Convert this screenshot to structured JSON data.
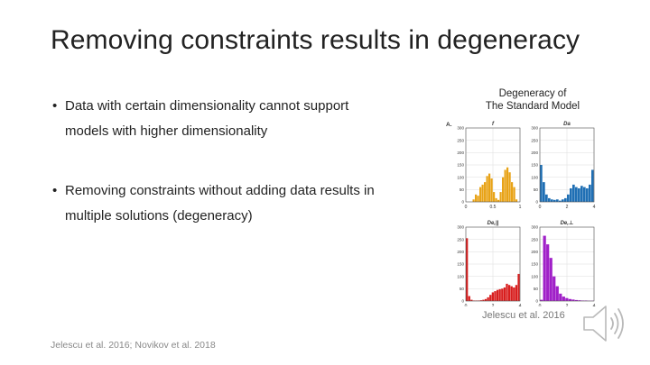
{
  "slide": {
    "title": "Removing constraints results in degeneracy",
    "bullets": [
      "Data with certain dimensionality cannot support models with higher dimensionality",
      "Removing constraints without adding data results in multiple solutions (degeneracy)"
    ],
    "bullet_glyph": "•",
    "figure_title_line1": "Degeneracy of",
    "figure_title_line2": "The Standard Model",
    "figure_caption": "Jelescu et al. 2016",
    "footer": "Jelescu et al. 2016; Novikov et al. 2018",
    "speaker_icon": "speaker-icon"
  },
  "chart_data": [
    {
      "type": "bar",
      "panel_label": "A.",
      "title": "f",
      "color": "#E8A317",
      "x_ticks": [
        "0",
        "0.5",
        "1"
      ],
      "y_ticks": [
        "0",
        "50",
        "100",
        "150",
        "200",
        "250",
        "300"
      ],
      "xlim": [
        0,
        1
      ],
      "ylim": [
        0,
        300
      ],
      "grid": true,
      "values": [
        0,
        0,
        0,
        10,
        30,
        25,
        60,
        70,
        80,
        105,
        115,
        95,
        40,
        15,
        8,
        40,
        100,
        130,
        140,
        120,
        80,
        60,
        10,
        0
      ]
    },
    {
      "type": "bar",
      "title": "Da",
      "color": "#1F6FB4",
      "x_ticks": [
        "0",
        "2",
        "4"
      ],
      "y_ticks": [
        "0",
        "50",
        "100",
        "150",
        "200",
        "250",
        "300"
      ],
      "xlim": [
        0,
        4
      ],
      "ylim": [
        0,
        300
      ],
      "grid": true,
      "values": [
        150,
        80,
        30,
        15,
        10,
        8,
        10,
        5,
        10,
        15,
        30,
        55,
        70,
        60,
        55,
        65,
        60,
        55,
        70,
        130
      ]
    },
    {
      "type": "bar",
      "title": "De,||",
      "color": "#D81E1E",
      "x_ticks": [
        "0",
        "2",
        "4"
      ],
      "y_ticks": [
        "0",
        "50",
        "100",
        "150",
        "200",
        "250",
        "300"
      ],
      "xlim": [
        0,
        4
      ],
      "ylim": [
        0,
        300
      ],
      "grid": true,
      "values": [
        255,
        20,
        5,
        2,
        2,
        2,
        3,
        5,
        8,
        15,
        25,
        35,
        40,
        45,
        48,
        50,
        55,
        70,
        65,
        60,
        55,
        65,
        110
      ]
    },
    {
      "type": "bar",
      "title": "De,⊥",
      "color": "#A020C8",
      "x_ticks": [
        "0",
        "2",
        "4"
      ],
      "y_ticks": [
        "0",
        "50",
        "100",
        "150",
        "200",
        "250",
        "300"
      ],
      "xlim": [
        0,
        4
      ],
      "ylim": [
        0,
        300
      ],
      "grid": true,
      "values": [
        5,
        265,
        230,
        175,
        100,
        60,
        30,
        18,
        12,
        8,
        6,
        4,
        3,
        2,
        2,
        1,
        1
      ]
    }
  ]
}
